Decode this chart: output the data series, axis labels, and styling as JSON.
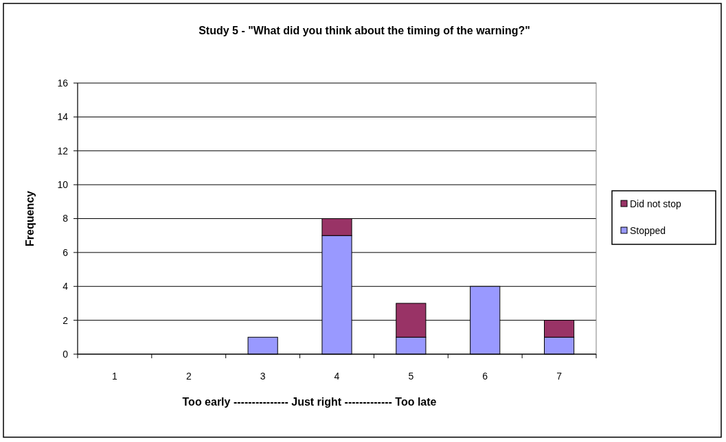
{
  "chart_data": {
    "type": "bar",
    "title": "Study 5 - \"What did you think about the timing of the warning?\"",
    "xlabel": "Too early --------------- Just right ------------- Too late",
    "ylabel": "Frequency",
    "categories": [
      "1",
      "2",
      "3",
      "4",
      "5",
      "6",
      "7"
    ],
    "stacked": true,
    "series": [
      {
        "name": "Stopped",
        "color": "#9999ff",
        "values": [
          0,
          0,
          1,
          7,
          1,
          4,
          1
        ]
      },
      {
        "name": "Did not stop",
        "color": "#993366",
        "values": [
          0,
          0,
          0,
          1,
          2,
          0,
          1
        ]
      }
    ],
    "ylim": [
      0,
      16
    ],
    "yticks": [
      0,
      2,
      4,
      6,
      8,
      10,
      12,
      14,
      16
    ],
    "grid": "y",
    "legend": "right"
  }
}
